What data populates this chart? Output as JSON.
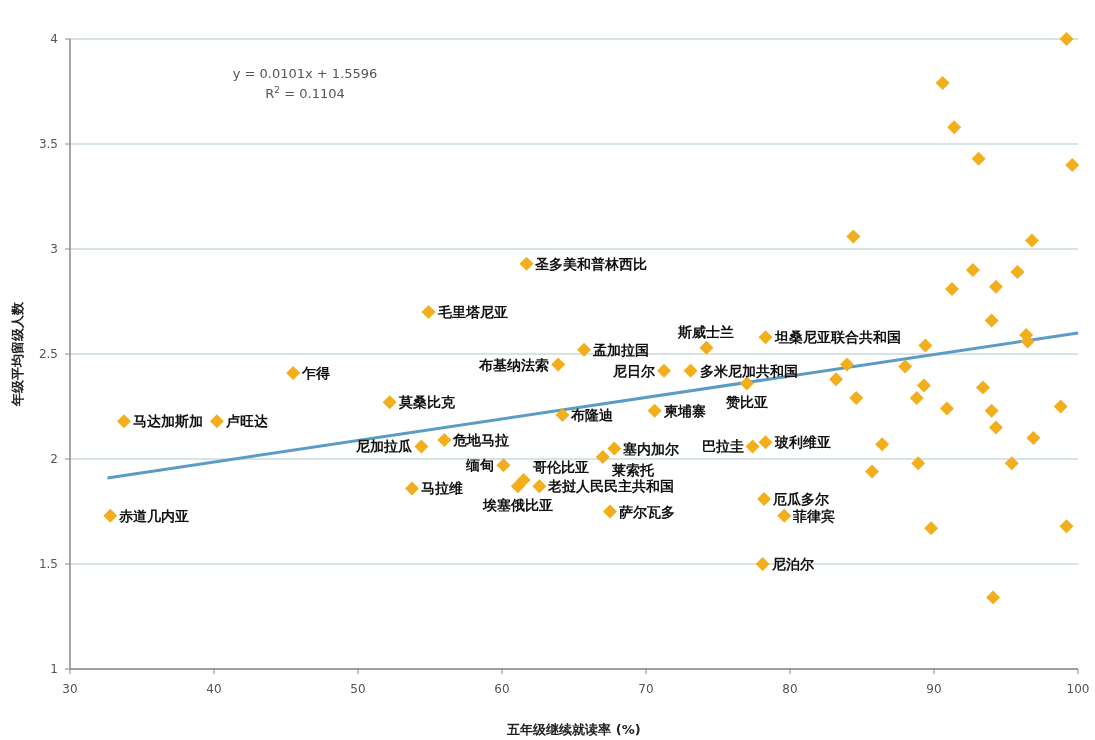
{
  "chart_data": {
    "type": "scatter",
    "xlabel": "五年级继续就读率 (%)",
    "ylabel": "年级平均留级人数",
    "xlim": [
      30,
      100
    ],
    "ylim": [
      1,
      4
    ],
    "xticks": [
      30,
      40,
      50,
      60,
      70,
      80,
      90,
      100
    ],
    "yticks": [
      1,
      1.5,
      2,
      2.5,
      3,
      3.5,
      4
    ],
    "grid": "y",
    "series": [
      {
        "marker": "diamond",
        "color": "#f2ae1c",
        "x": [
          33.75,
          40.2,
          45.5,
          54.9,
          52.2,
          32.8,
          54.4,
          56.0,
          53.75,
          61.1,
          61.5,
          60.1,
          62.6,
          67.8,
          67.0,
          67.5,
          64.2,
          63.9,
          65.7,
          61.7,
          71.25,
          73.1,
          74.2,
          70.6,
          77.0,
          78.3,
          77.4,
          78.3,
          78.2,
          79.6,
          78.1,
          99.2,
          90.6,
          91.4,
          93.1,
          99.6,
          84.4,
          96.8,
          92.7,
          95.8,
          91.25,
          94.3,
          94.0,
          96.4,
          96.5,
          89.4,
          83.96,
          88.0,
          83.2,
          89.3,
          93.4,
          84.6,
          88.8,
          90.9,
          94.0,
          98.8,
          94.3,
          96.9,
          86.4,
          88.9,
          95.4,
          85.7,
          89.8,
          99.2,
          94.1
        ],
        "values": [
          2.18,
          2.18,
          2.41,
          2.7,
          2.27,
          1.73,
          2.06,
          2.09,
          1.86,
          1.87,
          1.9,
          1.97,
          1.87,
          2.05,
          2.01,
          1.75,
          2.21,
          2.45,
          2.52,
          2.93,
          2.42,
          2.42,
          2.53,
          2.23,
          2.36,
          2.58,
          2.06,
          2.08,
          1.81,
          1.73,
          1.5,
          4.0,
          3.79,
          3.58,
          3.43,
          3.4,
          3.06,
          3.04,
          2.9,
          2.89,
          2.81,
          2.82,
          2.66,
          2.59,
          2.56,
          2.54,
          2.45,
          2.44,
          2.38,
          2.35,
          2.34,
          2.29,
          2.29,
          2.24,
          2.23,
          2.25,
          2.15,
          2.1,
          2.07,
          1.98,
          1.98,
          1.94,
          1.67,
          1.68,
          1.34
        ]
      },
      {
        "type": "line",
        "marker": "none",
        "color": "#5a9cc5",
        "x": [
          32.6,
          100
        ],
        "values": [
          1.91,
          2.6
        ]
      }
    ],
    "annotations": [
      {
        "text": "马达加斯加",
        "x": 33.75,
        "y": 2.18
      },
      {
        "text": "卢旺达",
        "x": 40.2,
        "y": 2.18
      },
      {
        "text": "乍得",
        "x": 45.5,
        "y": 2.41
      },
      {
        "text": "毛里塔尼亚",
        "x": 54.9,
        "y": 2.7
      },
      {
        "text": "莫桑比克",
        "x": 52.2,
        "y": 2.27
      },
      {
        "text": "赤道几内亚",
        "x": 32.8,
        "y": 1.73
      },
      {
        "text": "尼加拉瓜",
        "x": 54.4,
        "y": 2.06
      },
      {
        "text": "危地马拉",
        "x": 56.0,
        "y": 2.09
      },
      {
        "text": "马拉维",
        "x": 53.75,
        "y": 1.86
      },
      {
        "text": "埃塞俄比亚",
        "x": 61.1,
        "y": 1.87
      },
      {
        "text": "哥伦比亚",
        "x": 61.5,
        "y": 1.9
      },
      {
        "text": "缅甸",
        "x": 60.1,
        "y": 1.97
      },
      {
        "text": "老挝人民民主共和国",
        "x": 62.6,
        "y": 1.87
      },
      {
        "text": "塞内加尔",
        "x": 67.8,
        "y": 2.05
      },
      {
        "text": "莱索托",
        "x": 67.0,
        "y": 2.01
      },
      {
        "text": "萨尔瓦多",
        "x": 67.5,
        "y": 1.75
      },
      {
        "text": "布隆迪",
        "x": 64.2,
        "y": 2.21
      },
      {
        "text": "布基纳法索",
        "x": 63.9,
        "y": 2.45
      },
      {
        "text": "孟加拉国",
        "x": 65.7,
        "y": 2.52
      },
      {
        "text": "圣多美和普林西比",
        "x": 61.7,
        "y": 2.93
      },
      {
        "text": "尼日尔",
        "x": 71.25,
        "y": 2.42
      },
      {
        "text": "多米尼加共和国",
        "x": 73.1,
        "y": 2.42
      },
      {
        "text": "斯威士兰",
        "x": 74.2,
        "y": 2.53
      },
      {
        "text": "柬埔寨",
        "x": 70.6,
        "y": 2.23
      },
      {
        "text": "赞比亚",
        "x": 77.0,
        "y": 2.36
      },
      {
        "text": "坦桑尼亚联合共和国",
        "x": 78.3,
        "y": 2.58
      },
      {
        "text": "巴拉圭",
        "x": 77.4,
        "y": 2.06
      },
      {
        "text": "玻利维亚",
        "x": 78.3,
        "y": 2.08
      },
      {
        "text": "厄瓜多尔",
        "x": 78.2,
        "y": 1.81
      },
      {
        "text": "菲律宾",
        "x": 79.6,
        "y": 1.73
      },
      {
        "text": "尼泊尔",
        "x": 78.1,
        "y": 1.5
      },
      "y = 0.0101x + 1.5596",
      "R$^{2}$ = 0.1104"
    ]
  }
}
